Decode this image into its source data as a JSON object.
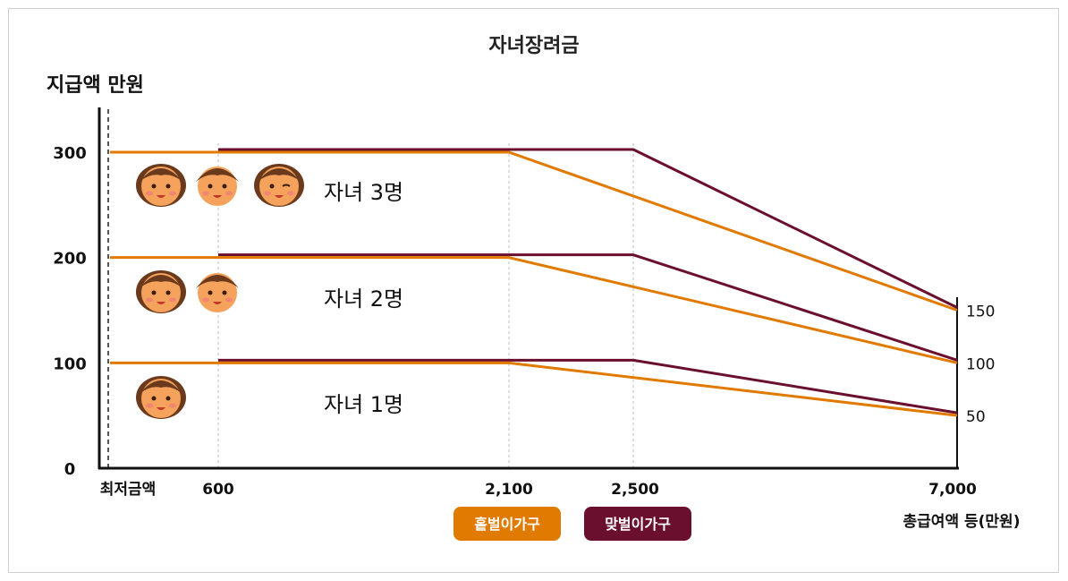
{
  "chart_data": {
    "type": "line",
    "title": "자녀장려금",
    "ylabel": "지급액 만원",
    "xlabel": "총급여액 등(만원)",
    "ylim": [
      0,
      300
    ],
    "y_ticks": [
      "0",
      "100",
      "200",
      "300"
    ],
    "x_ticks": [
      "최저금액",
      "600",
      "2,100",
      "2,500",
      "7,000"
    ],
    "right_ticks": [
      "150",
      "100",
      "50"
    ],
    "groups": [
      {
        "label": "자녀 3명",
        "children": 3
      },
      {
        "label": "자녀 2명",
        "children": 2
      },
      {
        "label": "자녀 1명",
        "children": 1
      }
    ],
    "legend": [
      {
        "name": "홑벌이가구",
        "color": "#e07a00"
      },
      {
        "name": "맞벌이가구",
        "color": "#6b0f2e"
      }
    ],
    "series": [
      {
        "name": "홑벌이가구",
        "points": [
          {
            "x": "최저금액",
            "y": 300
          },
          {
            "x": "2,100",
            "y": 300
          },
          {
            "x": "7,000",
            "y": 150
          }
        ]
      },
      {
        "name": "맞벌이가구",
        "points": [
          {
            "x": "600",
            "y": 300
          },
          {
            "x": "2,500",
            "y": 300
          },
          {
            "x": "7,000",
            "y": 150
          }
        ]
      },
      {
        "name": "홑벌이가구",
        "points": [
          {
            "x": "최저금액",
            "y": 200
          },
          {
            "x": "2,100",
            "y": 200
          },
          {
            "x": "7,000",
            "y": 100
          }
        ]
      },
      {
        "name": "맞벌이가구",
        "points": [
          {
            "x": "600",
            "y": 200
          },
          {
            "x": "2,500",
            "y": 200
          },
          {
            "x": "7,000",
            "y": 100
          }
        ]
      },
      {
        "name": "홑벌이가구",
        "points": [
          {
            "x": "최저금액",
            "y": 100
          },
          {
            "x": "2,100",
            "y": 100
          },
          {
            "x": "7,000",
            "y": 50
          }
        ]
      },
      {
        "name": "맞벌이가구",
        "points": [
          {
            "x": "600",
            "y": 100
          },
          {
            "x": "2,500",
            "y": 100
          },
          {
            "x": "7,000",
            "y": 50
          }
        ]
      }
    ]
  }
}
